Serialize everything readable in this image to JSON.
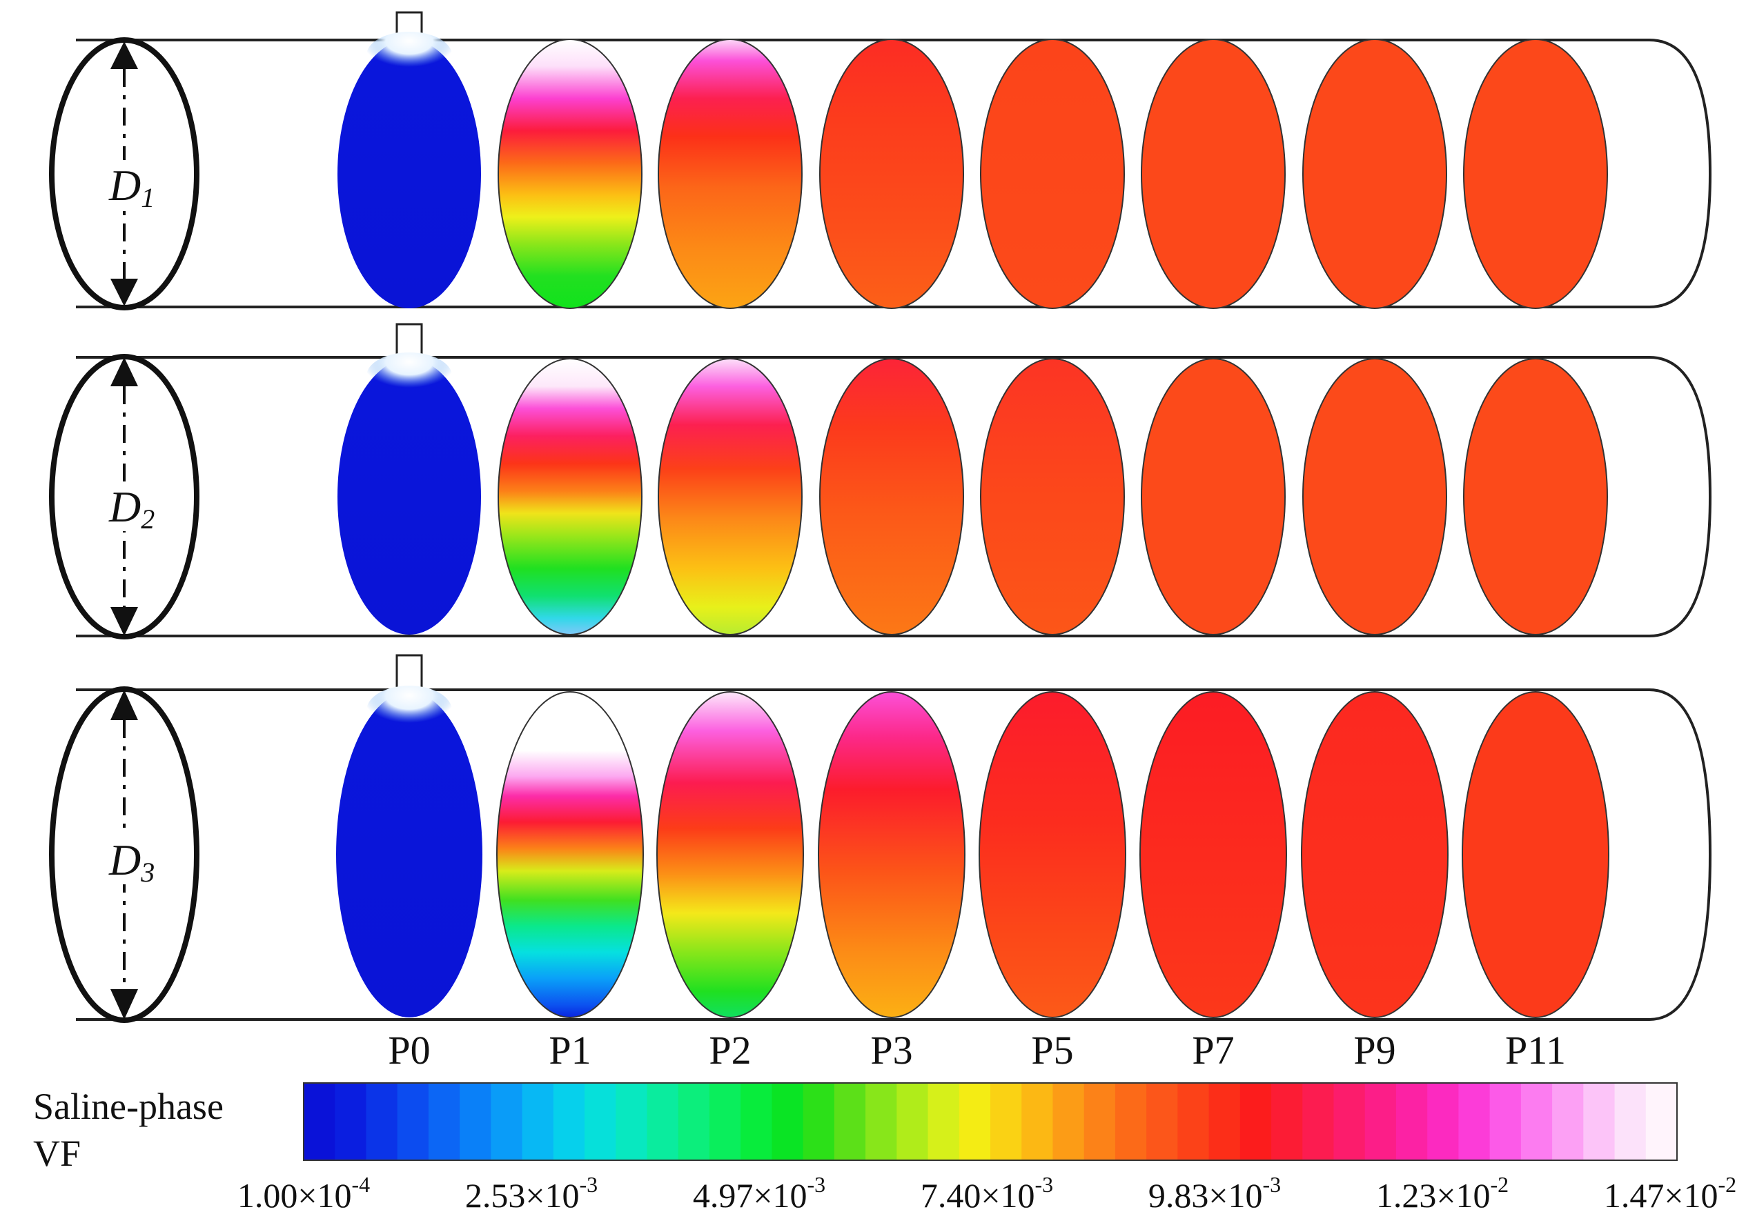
{
  "pipes": [
    {
      "label": "D",
      "subscript": "1"
    },
    {
      "label": "D",
      "subscript": "2"
    },
    {
      "label": "D",
      "subscript": "3"
    }
  ],
  "positions": [
    "P0",
    "P1",
    "P2",
    "P3",
    "P5",
    "P7",
    "P9",
    "P11"
  ],
  "legend": {
    "title_line1": "Saline-phase",
    "title_line2": "VF",
    "ticks": [
      {
        "mantissa": "1.00×10",
        "exponent": "-4"
      },
      {
        "mantissa": "2.53×10",
        "exponent": "-3"
      },
      {
        "mantissa": "4.97×10",
        "exponent": "-3"
      },
      {
        "mantissa": "7.40×10",
        "exponent": "-3"
      },
      {
        "mantissa": "9.83×10",
        "exponent": "-3"
      },
      {
        "mantissa": "1.23×10",
        "exponent": "-2"
      },
      {
        "mantissa": "1.47×10",
        "exponent": "-2"
      }
    ],
    "colors": [
      "#0a12d8",
      "#0a1ee0",
      "#0b34e8",
      "#0c4cf0",
      "#0c66f5",
      "#0a80f8",
      "#0a9cf8",
      "#08b8f4",
      "#06d0ec",
      "#06e0da",
      "#08e8c0",
      "#0aec9e",
      "#0cee7c",
      "#0aee5c",
      "#08ec3c",
      "#0ae424",
      "#2ce018",
      "#5ce018",
      "#88e61a",
      "#b0ec1a",
      "#d6f01a",
      "#f4ec14",
      "#fad214",
      "#fcb814",
      "#fc9c16",
      "#fc8218",
      "#fc6a18",
      "#fc561a",
      "#fc4218",
      "#fc2e18",
      "#fc1c1c",
      "#fc1c34",
      "#fc1c50",
      "#fc1c6c",
      "#fc1e88",
      "#fc22a4",
      "#fc2ac0",
      "#fc3cd8",
      "#fc5ae8",
      "#fc7cf0",
      "#fca0f4",
      "#fcc4f8",
      "#fce2fa",
      "#fff4fc"
    ]
  }
}
